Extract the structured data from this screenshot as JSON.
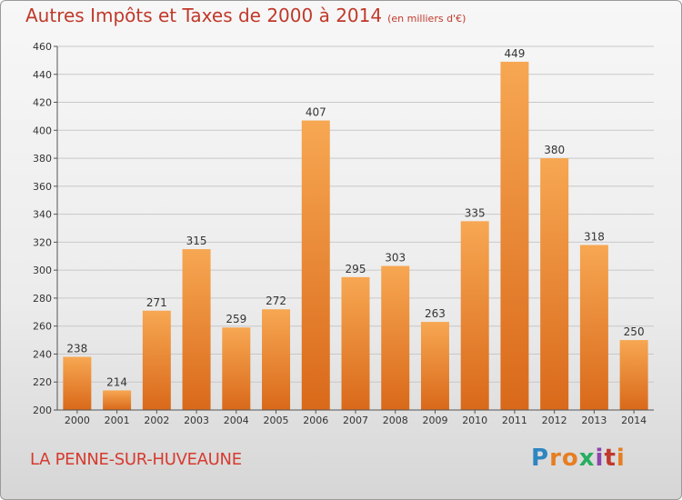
{
  "title": "Autres Impôts et Taxes de 2000 à 2014",
  "unit": "(en milliers d'€)",
  "commune": "LA PENNE-SUR-HUVEAUNE",
  "logo": {
    "letters": [
      "P",
      "r",
      "o",
      "x",
      "i",
      "t",
      "i"
    ],
    "colors": [
      "#2e86c1",
      "#e67e22",
      "#e67e22",
      "#27ae60",
      "#8e44ad",
      "#c0392b",
      "#e67e22"
    ]
  },
  "colors": {
    "bar_top": "#f7a752",
    "bar_bottom": "#d9691a",
    "title": "#c0392b"
  },
  "chart_data": {
    "type": "bar",
    "title": "Autres Impôts et Taxes de 2000 à 2014",
    "xlabel": "",
    "ylabel": "",
    "ylim": [
      200,
      460
    ],
    "yticks": [
      200,
      220,
      240,
      260,
      280,
      300,
      320,
      340,
      360,
      380,
      400,
      420,
      440,
      460
    ],
    "grid": true,
    "categories": [
      "2000",
      "2001",
      "2002",
      "2003",
      "2004",
      "2005",
      "2006",
      "2007",
      "2008",
      "2009",
      "2010",
      "2011",
      "2012",
      "2013",
      "2014"
    ],
    "values": [
      238,
      214,
      271,
      315,
      259,
      272,
      407,
      295,
      303,
      263,
      335,
      449,
      380,
      318,
      250
    ]
  }
}
